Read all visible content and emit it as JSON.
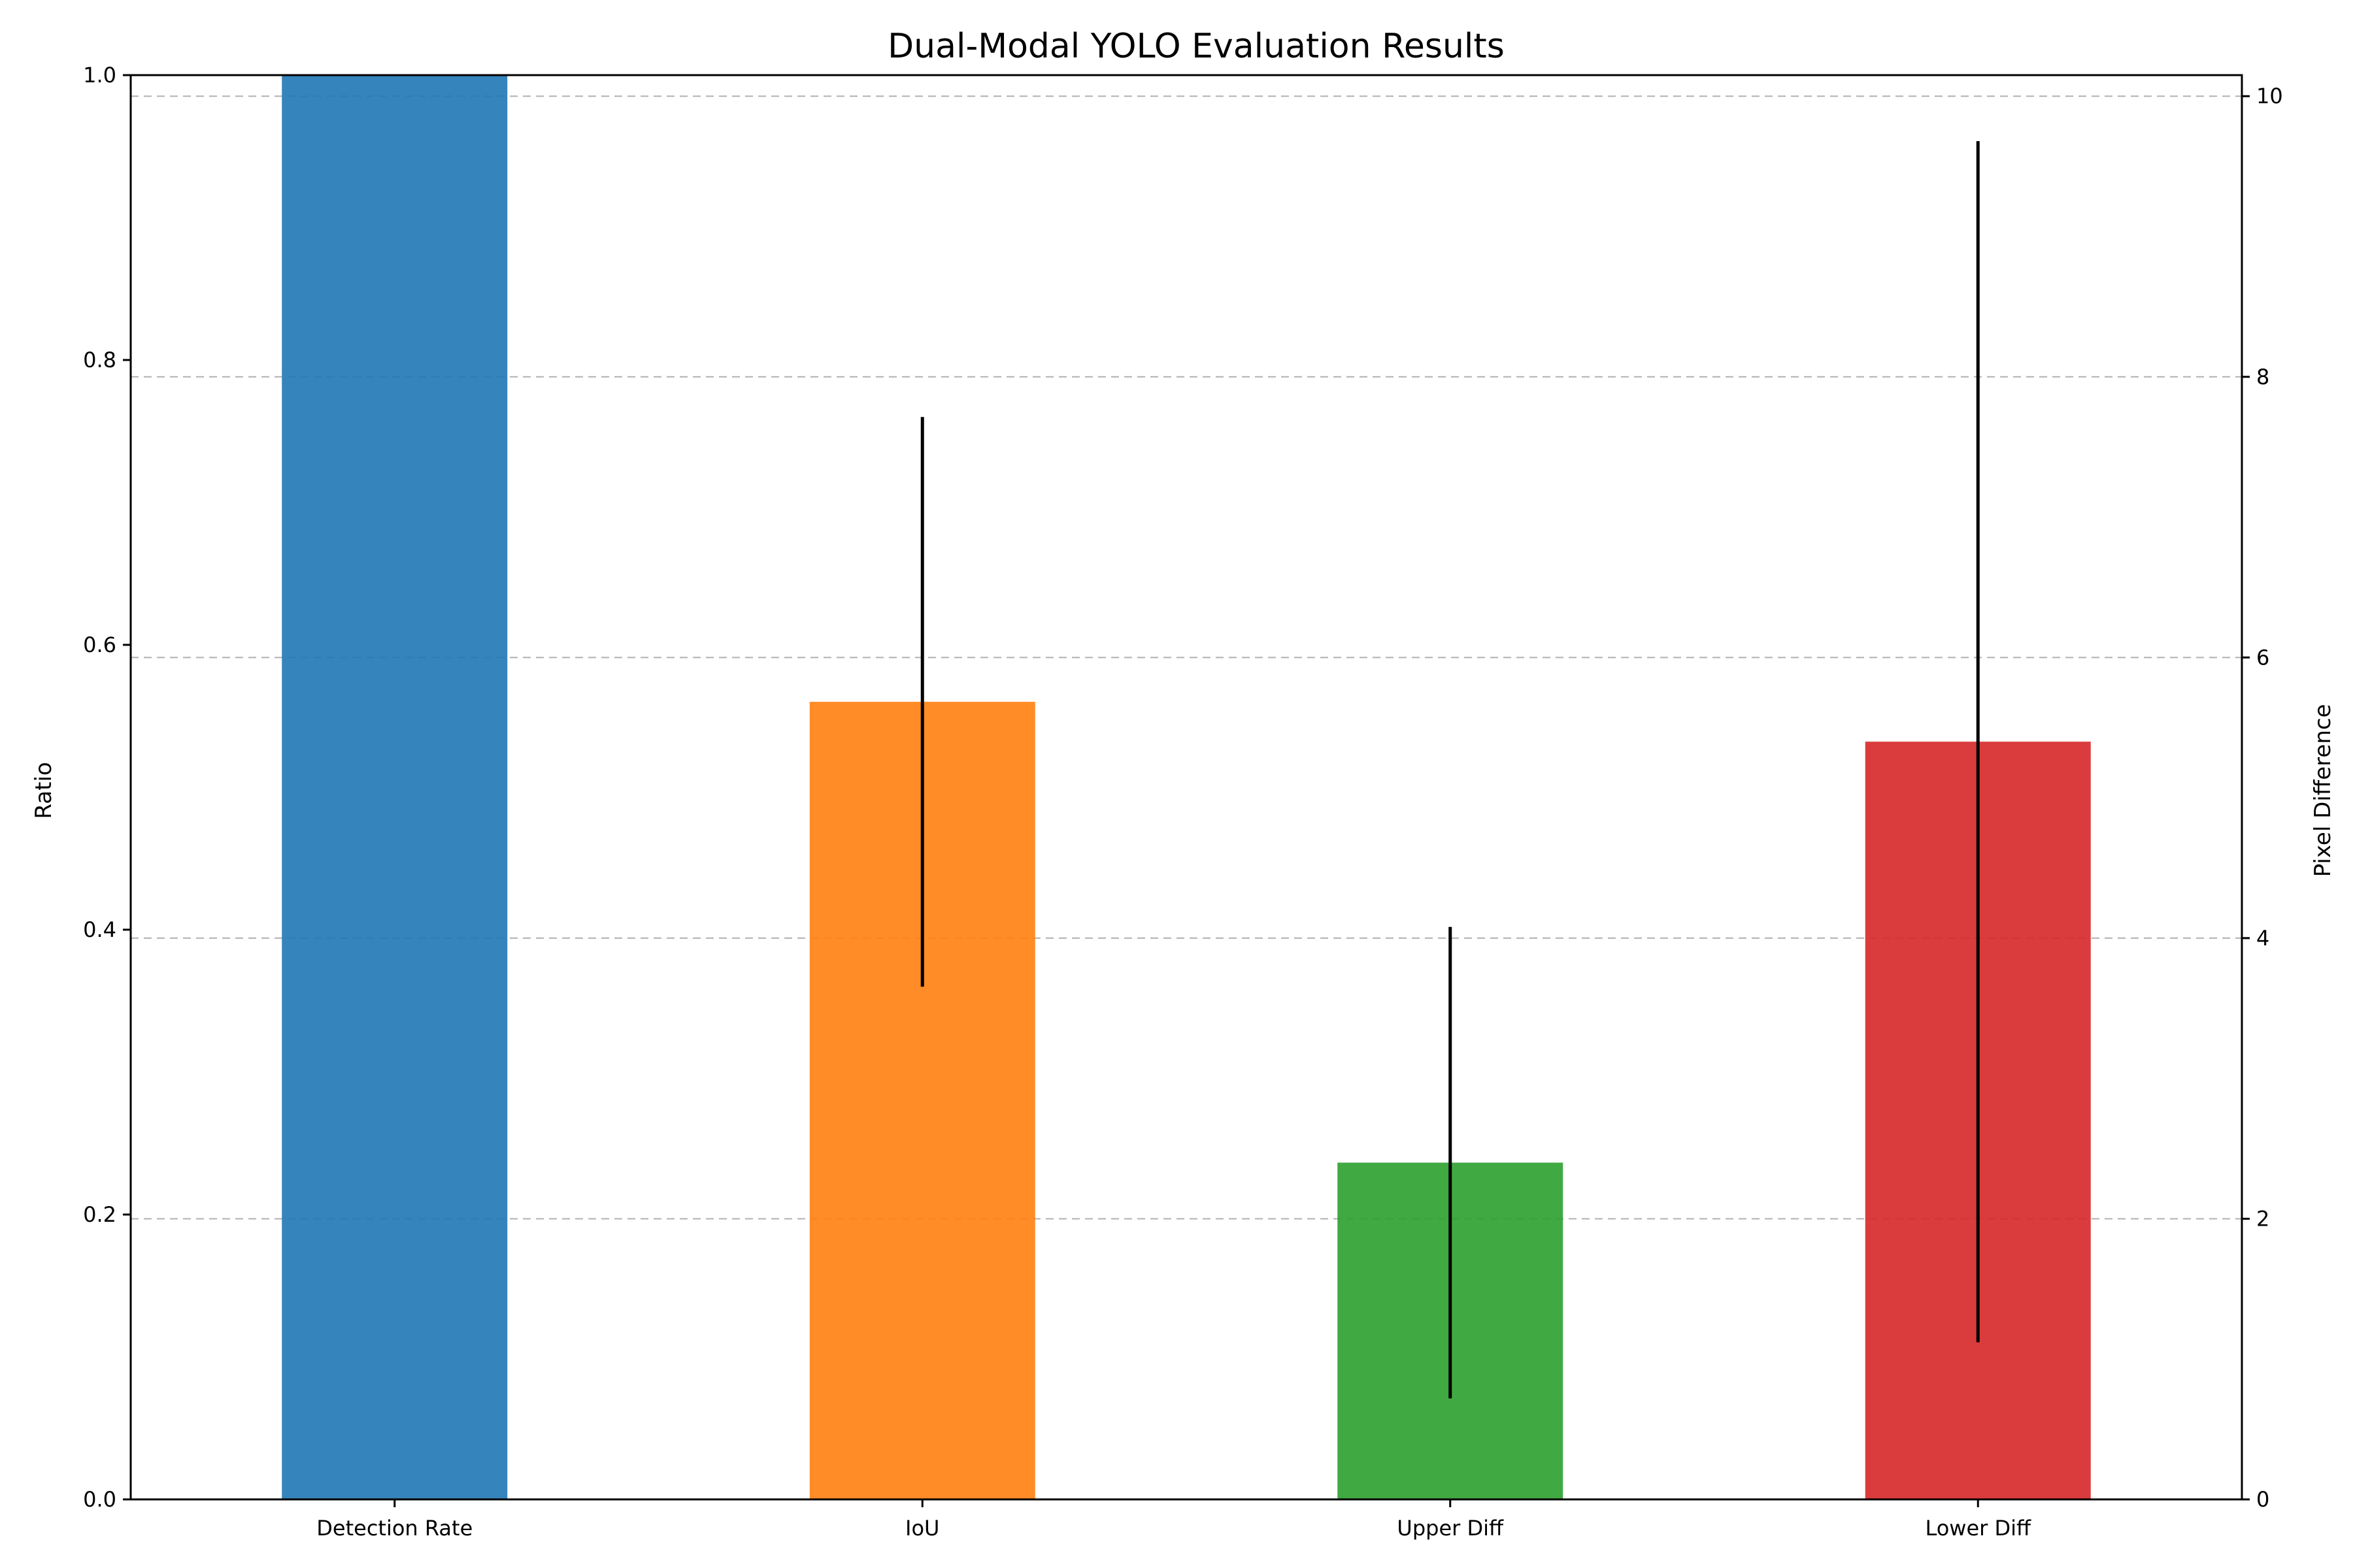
{
  "chart_data": {
    "type": "bar",
    "title": "Dual-Modal YOLO Evaluation Results",
    "categories": [
      "Detection Rate",
      "IoU",
      "Upper Diff",
      "Lower Diff"
    ],
    "colors": [
      "#1f77b4",
      "#ff7f0e",
      "#2ca02c",
      "#d62728"
    ],
    "bar_opacity": 0.9,
    "left_axis": {
      "label": "Ratio",
      "ylim": [
        0,
        1.0
      ],
      "ticks": [
        "0.0",
        "0.2",
        "0.4",
        "0.6",
        "0.8",
        "1.0"
      ]
    },
    "right_axis": {
      "label": "Pixel Difference",
      "ylim": [
        0,
        10.15
      ],
      "ticks": [
        "0",
        "2",
        "4",
        "6",
        "8",
        "10"
      ]
    },
    "bars": [
      {
        "category": "Detection Rate",
        "axis": "left",
        "value": 1.0
      },
      {
        "category": "IoU",
        "axis": "left",
        "value": 0.56,
        "error": 0.2
      },
      {
        "category": "Upper Diff",
        "axis": "right",
        "value": 2.4,
        "error": 1.68
      },
      {
        "category": "Lower Diff",
        "axis": "right",
        "value": 5.4,
        "error": 4.28
      }
    ],
    "grid": {
      "axis": "y",
      "style": "dashed",
      "color": "#b0b0b0"
    },
    "legend": "none"
  }
}
